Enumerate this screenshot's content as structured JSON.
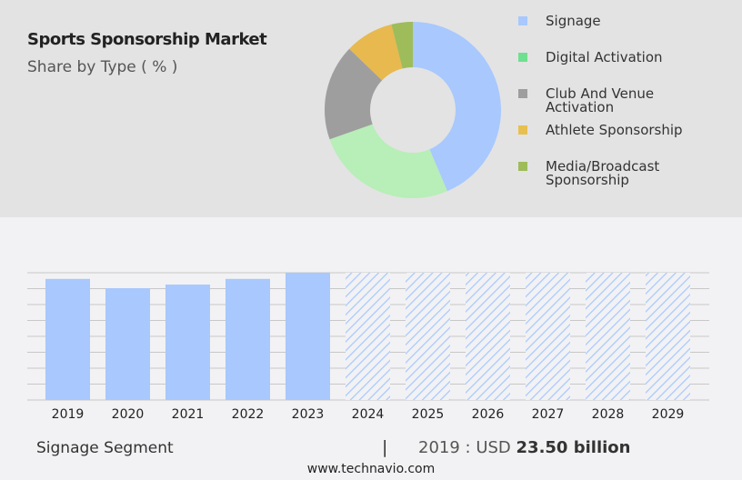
{
  "header": {
    "title": "Sports Sponsorship Market",
    "subtitle": "Share by Type ( % )"
  },
  "chart_data": [
    {
      "type": "pie",
      "donut": true,
      "subtitle": "Share by Type ( % )",
      "categories": [
        "Signage",
        "Digital Activation",
        "Club And Venue Activation",
        "Athlete Sponsorship",
        "Media/Broadcast Sponsorship"
      ],
      "values": [
        43.6,
        26.0,
        17.6,
        8.9,
        3.9
      ],
      "colors": [
        "#a8c8fe",
        "#b8eeb8",
        "#9e9e9e",
        "#e7b94f",
        "#9ebc5a"
      ],
      "legend_colors": [
        "#a8c8fe",
        "#6fe08f",
        "#9e9e9e",
        "#e7c04f",
        "#9ebc5a"
      ],
      "legend": "right"
    },
    {
      "type": "bar",
      "categories": [
        "2019",
        "2020",
        "2021",
        "2022",
        "2023",
        "2024",
        "2025",
        "2026",
        "2027",
        "2028",
        "2029"
      ],
      "values": [
        23.5,
        21.7,
        22.4,
        23.5,
        24.7,
        null,
        null,
        null,
        null,
        null,
        null
      ],
      "forecast_hatched": [
        "2024",
        "2025",
        "2026",
        "2027",
        "2028",
        "2029"
      ],
      "bar_color": "#a8c8fe",
      "ylim": [
        0,
        24.7
      ],
      "grid": true,
      "ylabel": "",
      "xlabel": ""
    }
  ],
  "footer": {
    "segment": "Signage Segment",
    "separator": "|",
    "year_label": "2019 : USD",
    "value": "23.50 billion",
    "site": "www.technavio.com"
  }
}
